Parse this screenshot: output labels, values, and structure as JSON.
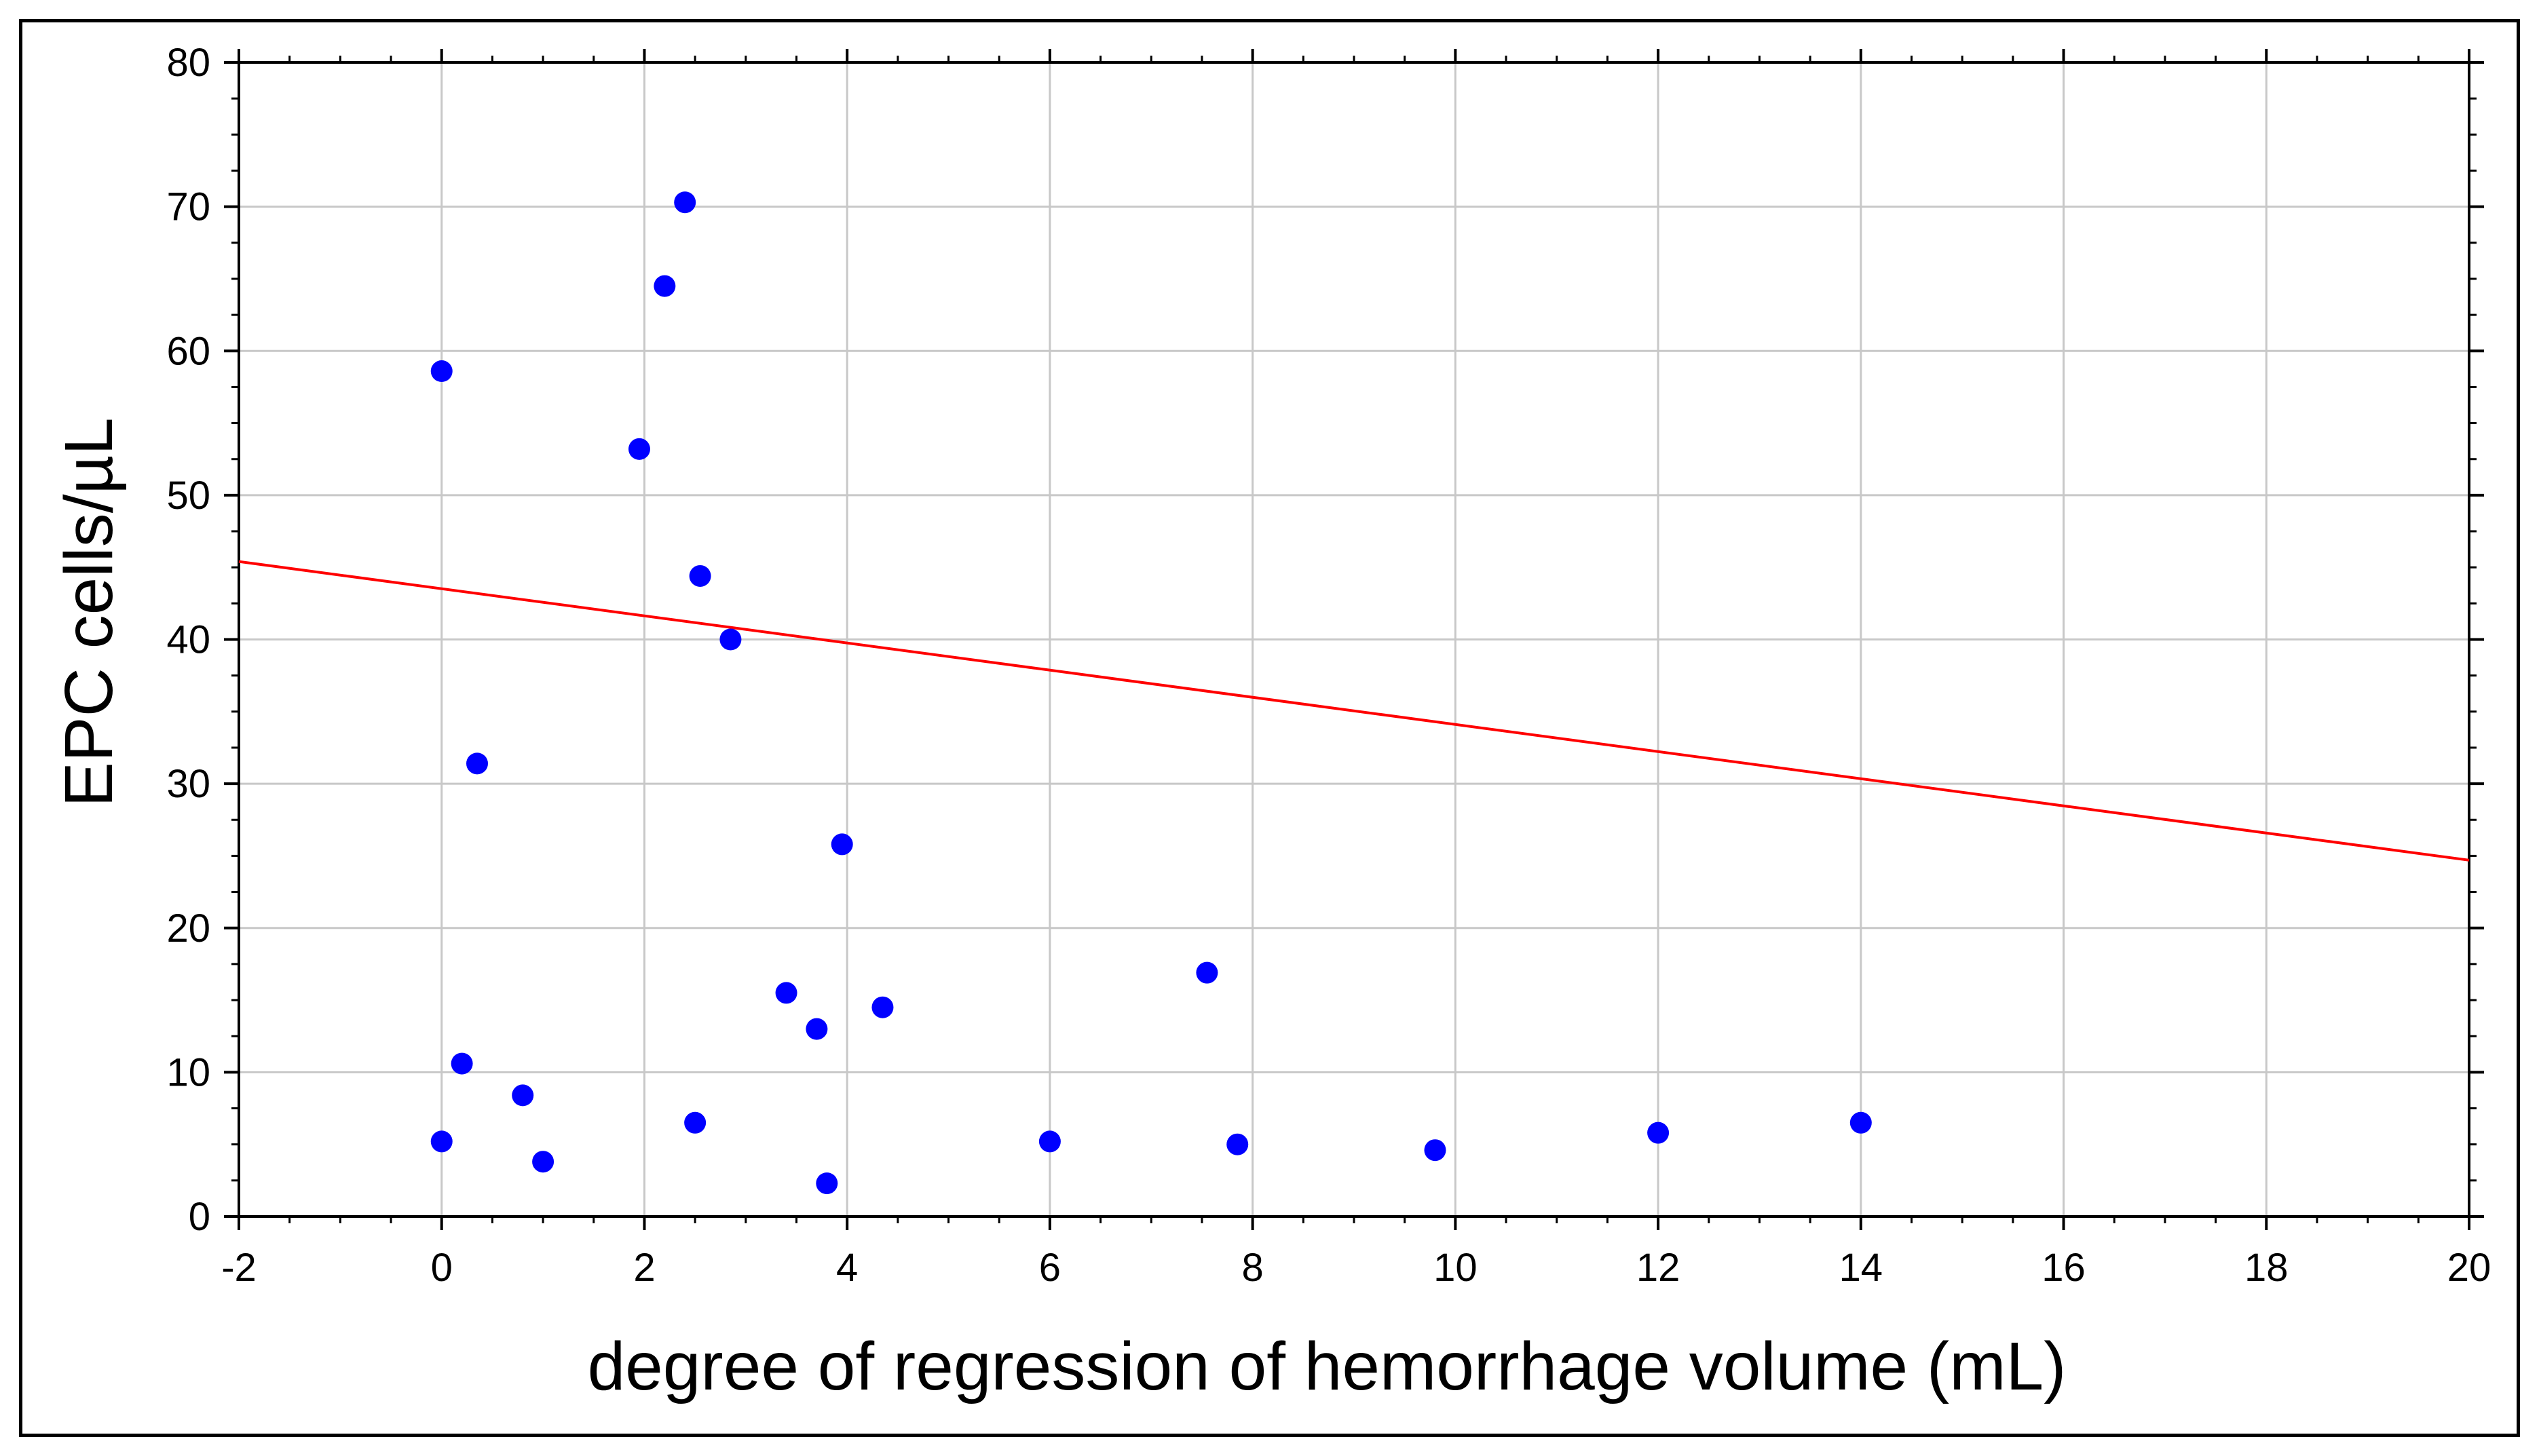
{
  "chart_data": {
    "type": "scatter",
    "title": "",
    "xlabel": "degree of regression of hemorrhage volume (mL)",
    "ylabel": "EPC cells/µL",
    "xlim": [
      -2,
      20
    ],
    "ylim": [
      0,
      80
    ],
    "xticks": [
      "-2",
      "0",
      "2",
      "4",
      "6",
      "8",
      "10",
      "12",
      "14",
      "16",
      "18",
      "20"
    ],
    "yticks": [
      "0",
      "10",
      "20",
      "30",
      "40",
      "50",
      "60",
      "70",
      "80"
    ],
    "grid": true,
    "points": [
      {
        "x": 0.0,
        "y": 58.6
      },
      {
        "x": 0.0,
        "y": 5.2
      },
      {
        "x": 0.2,
        "y": 10.6
      },
      {
        "x": 0.35,
        "y": 31.4
      },
      {
        "x": 0.8,
        "y": 8.4
      },
      {
        "x": 1.0,
        "y": 3.8
      },
      {
        "x": 1.95,
        "y": 53.2
      },
      {
        "x": 2.2,
        "y": 64.5
      },
      {
        "x": 2.4,
        "y": 70.3
      },
      {
        "x": 2.5,
        "y": 6.5
      },
      {
        "x": 2.55,
        "y": 44.4
      },
      {
        "x": 2.85,
        "y": 40.0
      },
      {
        "x": 3.4,
        "y": 15.5
      },
      {
        "x": 3.7,
        "y": 13.0
      },
      {
        "x": 3.8,
        "y": 2.3
      },
      {
        "x": 3.95,
        "y": 25.8
      },
      {
        "x": 4.35,
        "y": 14.5
      },
      {
        "x": 6.0,
        "y": 5.2
      },
      {
        "x": 7.55,
        "y": 16.9
      },
      {
        "x": 7.85,
        "y": 5.0
      },
      {
        "x": 9.8,
        "y": 4.6
      },
      {
        "x": 12.0,
        "y": 5.8
      },
      {
        "x": 14.0,
        "y": 6.5
      }
    ],
    "fit_line": {
      "x": [
        -2,
        20
      ],
      "y": [
        45.4,
        24.7
      ]
    },
    "colors": {
      "points": "#0000ff",
      "fit_line": "#ff0000",
      "grid": "#c8c8c8",
      "axis": "#000000"
    }
  }
}
